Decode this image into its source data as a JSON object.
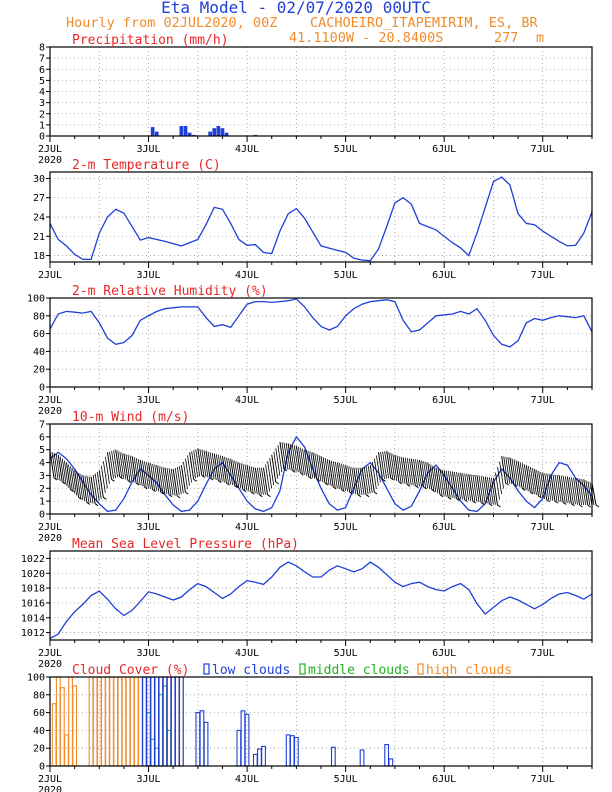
{
  "header": {
    "title": "Eta Model - 02/07/2020 00UTC",
    "subtitle_left": "Hourly from 02JUL2020, 00Z",
    "station": "CACHOEIRO_ITAPEMIRIM, ES, BR",
    "coords": "41.1100W - 20.8400S",
    "elevation": "277",
    "elevation_unit": "m"
  },
  "x_axis": {
    "day_labels": [
      "2JUL",
      "3JUL",
      "4JUL",
      "5JUL",
      "6JUL",
      "7JUL"
    ],
    "year_label": "2020",
    "range_hours": [
      0,
      132
    ]
  },
  "colors": {
    "series": "#1f3fd8",
    "title": "#e82828",
    "header": "#f08c2a",
    "grid": "#9a9a9a",
    "low": "#1f3fd8",
    "middle": "#21b221",
    "high": "#f08c2a",
    "wind_barbs": "#000000"
  },
  "chart_data": [
    {
      "type": "bar",
      "title": "Precipitation (mm/h)",
      "ylim": [
        0,
        8
      ],
      "yticks": [
        "0",
        "1",
        "2",
        "3",
        "4",
        "5",
        "6",
        "7",
        "8"
      ],
      "x": [
        25,
        26,
        32,
        33,
        34,
        35,
        39,
        40,
        41,
        42,
        43,
        50
      ],
      "values": [
        0.8,
        0.4,
        0.9,
        0.9,
        0.3,
        0.1,
        0.4,
        0.7,
        0.9,
        0.7,
        0.3,
        0.1
      ]
    },
    {
      "type": "line",
      "title": "2-m Temperature (C)",
      "ylim": [
        17,
        31
      ],
      "yticks": [
        "18",
        "21",
        "24",
        "27",
        "30"
      ],
      "x": [
        0,
        2,
        4,
        6,
        8,
        10,
        12,
        14,
        16,
        18,
        20,
        22,
        24,
        28,
        32,
        36,
        38,
        40,
        42,
        44,
        46,
        48,
        50,
        52,
        54,
        56,
        58,
        60,
        62,
        66,
        70,
        72,
        74,
        76,
        78,
        80,
        82,
        84,
        86,
        88,
        90,
        94,
        98,
        100,
        102,
        104,
        106,
        108,
        110,
        112,
        114,
        116,
        118,
        120,
        122,
        124,
        126,
        128,
        130,
        132
      ],
      "values": [
        23.0,
        20.5,
        19.5,
        18.2,
        17.4,
        17.4,
        21.5,
        24.0,
        25.2,
        24.6,
        22.5,
        20.4,
        20.8,
        20.2,
        19.5,
        20.5,
        22.8,
        25.5,
        25.2,
        23.0,
        20.5,
        19.6,
        19.7,
        18.5,
        18.3,
        21.8,
        24.5,
        25.3,
        23.8,
        19.5,
        18.8,
        18.5,
        17.6,
        17.3,
        17.2,
        19.0,
        22.5,
        26.2,
        27.0,
        26.0,
        23.0,
        22.0,
        20.0,
        19.2,
        18.0,
        21.5,
        25.5,
        29.5,
        30.2,
        29.0,
        24.5,
        23.0,
        22.8,
        21.8,
        21.0,
        20.2,
        19.5,
        19.6,
        21.5,
        24.8
      ],
      "line_color": "#1f3fd8"
    },
    {
      "type": "line",
      "title": "2-m Relative Humidity (%)",
      "ylim": [
        0,
        100
      ],
      "yticks": [
        "0",
        "20",
        "40",
        "60",
        "80",
        "100"
      ],
      "x": [
        0,
        2,
        4,
        6,
        8,
        10,
        12,
        14,
        16,
        18,
        20,
        22,
        24,
        26,
        28,
        32,
        36,
        38,
        40,
        42,
        44,
        46,
        48,
        50,
        52,
        54,
        56,
        58,
        60,
        62,
        64,
        66,
        68,
        70,
        72,
        74,
        76,
        78,
        80,
        82,
        84,
        86,
        88,
        90,
        94,
        98,
        100,
        102,
        104,
        106,
        108,
        110,
        112,
        114,
        116,
        118,
        120,
        122,
        124,
        126,
        128,
        130,
        132
      ],
      "values": [
        65,
        82,
        85,
        84,
        83,
        85,
        72,
        55,
        48,
        50,
        58,
        75,
        80,
        85,
        88,
        90,
        90,
        78,
        68,
        70,
        67,
        80,
        93,
        96,
        96,
        95,
        96,
        97,
        99,
        90,
        78,
        68,
        64,
        68,
        80,
        88,
        93,
        96,
        97,
        98,
        96,
        75,
        62,
        64,
        80,
        82,
        85,
        82,
        88,
        75,
        58,
        48,
        45,
        52,
        72,
        77,
        75,
        78,
        80,
        79,
        78,
        80,
        62
      ],
      "line_color": "#1f3fd8"
    },
    {
      "type": "line",
      "title": "10-m Wind (m/s)",
      "ylim": [
        0,
        7
      ],
      "yticks": [
        "0",
        "1",
        "2",
        "3",
        "4",
        "5",
        "6",
        "7"
      ],
      "x": [
        0,
        2,
        4,
        6,
        8,
        10,
        12,
        14,
        16,
        18,
        20,
        22,
        24,
        26,
        28,
        30,
        32,
        34,
        36,
        38,
        40,
        42,
        44,
        46,
        48,
        50,
        52,
        54,
        56,
        58,
        60,
        62,
        64,
        66,
        68,
        70,
        72,
        74,
        76,
        78,
        80,
        82,
        84,
        86,
        88,
        90,
        92,
        94,
        96,
        98,
        100,
        102,
        104,
        106,
        108,
        110,
        112,
        114,
        116,
        118,
        120,
        122,
        124,
        126,
        128,
        130,
        132
      ],
      "values": [
        4.3,
        4.8,
        4.3,
        3.5,
        2.5,
        1.5,
        0.8,
        0.2,
        0.3,
        1.2,
        2.5,
        3.5,
        3.0,
        2.4,
        1.5,
        0.7,
        0.2,
        0.3,
        1.0,
        2.3,
        3.5,
        4.0,
        3.0,
        2.0,
        1.0,
        0.4,
        0.2,
        0.5,
        1.8,
        4.8,
        6.0,
        5.2,
        3.5,
        2.0,
        0.8,
        0.3,
        0.5,
        2.0,
        3.5,
        4.0,
        3.2,
        2.0,
        0.8,
        0.3,
        0.6,
        1.8,
        3.2,
        3.8,
        3.0,
        2.0,
        1.0,
        0.3,
        0.2,
        0.8,
        2.5,
        3.5,
        2.8,
        1.8,
        1.0,
        0.5,
        1.2,
        3.0,
        4.0,
        3.8,
        2.8,
        2.2,
        1.4
      ],
      "line_color": "#1f3fd8",
      "barbs_x": [
        0,
        2,
        4,
        6,
        8,
        10,
        12,
        14,
        16,
        18,
        20,
        22,
        24,
        26,
        28,
        30,
        32,
        34,
        36,
        38,
        40,
        42,
        44,
        46,
        48,
        50,
        52,
        54,
        56,
        58,
        60,
        62,
        64,
        66,
        68,
        70,
        72,
        74,
        76,
        78,
        80,
        82,
        84,
        86,
        88,
        90,
        92,
        94,
        96,
        98,
        100,
        102,
        104,
        106,
        108,
        110,
        112,
        114,
        116,
        118,
        120,
        122,
        124,
        126,
        128,
        130,
        132
      ],
      "barbs_y": [
        4.9,
        4.6,
        4.0,
        3.4,
        3.0,
        2.9,
        3.4,
        4.8,
        5.0,
        4.7,
        4.5,
        4.2,
        4.0,
        3.8,
        3.6,
        3.5,
        3.8,
        4.8,
        5.1,
        4.9,
        4.7,
        4.5,
        4.3,
        4.0,
        3.8,
        3.6,
        3.6,
        4.6,
        5.6,
        5.5,
        5.3,
        5.0,
        4.8,
        4.5,
        4.2,
        4.0,
        3.8,
        3.6,
        3.6,
        3.8,
        4.8,
        4.9,
        4.6,
        4.4,
        4.3,
        4.2,
        4.0,
        3.6,
        3.4,
        3.3,
        3.2,
        3.1,
        3.0,
        2.9,
        2.8,
        4.5,
        4.4,
        4.1,
        3.8,
        3.5,
        3.2,
        3.1,
        3.0,
        2.9,
        2.8,
        2.7,
        2.4
      ]
    },
    {
      "type": "line",
      "title": "Mean Sea Level Pressure (hPa)",
      "ylim": [
        1011,
        1023
      ],
      "yticks": [
        "1012",
        "1014",
        "1016",
        "1018",
        "1020",
        "1022"
      ],
      "x": [
        0,
        2,
        4,
        6,
        8,
        10,
        12,
        14,
        16,
        18,
        20,
        22,
        24,
        26,
        28,
        30,
        32,
        34,
        36,
        38,
        40,
        42,
        44,
        46,
        48,
        50,
        52,
        54,
        56,
        58,
        60,
        62,
        64,
        66,
        68,
        70,
        72,
        74,
        76,
        78,
        80,
        82,
        84,
        86,
        88,
        90,
        92,
        94,
        96,
        98,
        100,
        102,
        104,
        106,
        108,
        110,
        112,
        114,
        116,
        118,
        120,
        122,
        124,
        126,
        128,
        130,
        132
      ],
      "values": [
        1011.2,
        1011.8,
        1013.5,
        1014.8,
        1015.8,
        1017.0,
        1017.6,
        1016.5,
        1015.2,
        1014.3,
        1015.0,
        1016.2,
        1017.5,
        1017.2,
        1016.8,
        1016.4,
        1016.8,
        1017.8,
        1018.6,
        1018.2,
        1017.4,
        1016.6,
        1017.2,
        1018.2,
        1019.0,
        1018.8,
        1018.5,
        1019.5,
        1020.8,
        1021.5,
        1021.0,
        1020.2,
        1019.5,
        1019.5,
        1020.4,
        1021.0,
        1020.6,
        1020.2,
        1020.6,
        1021.5,
        1020.8,
        1019.8,
        1018.8,
        1018.2,
        1018.6,
        1018.8,
        1018.2,
        1017.8,
        1017.6,
        1018.2,
        1018.6,
        1017.8,
        1015.9,
        1014.5,
        1015.4,
        1016.3,
        1016.8,
        1016.4,
        1015.8,
        1015.2,
        1015.8,
        1016.6,
        1017.2,
        1017.4,
        1017.0,
        1016.5,
        1017.2
      ],
      "line_color": "#1f3fd8"
    },
    {
      "type": "bar",
      "title": "Cloud Cover (%)",
      "legend": [
        "low clouds",
        "middle clouds",
        "high clouds"
      ],
      "ylim": [
        0,
        100
      ],
      "yticks": [
        "0",
        "20",
        "40",
        "60",
        "80",
        "100"
      ],
      "series": [
        {
          "name": "high clouds",
          "x": [
            1,
            2,
            3,
            4,
            5,
            6,
            10,
            11,
            12,
            13,
            14,
            15,
            16,
            17,
            18,
            19,
            20,
            21,
            22,
            23,
            24,
            25,
            26,
            27,
            28,
            29,
            30,
            31,
            32
          ],
          "values": [
            70,
            100,
            88,
            35,
            100,
            90,
            100,
            100,
            100,
            100,
            100,
            100,
            100,
            100,
            100,
            100,
            100,
            100,
            100,
            100,
            100,
            100,
            100,
            100,
            100,
            100,
            100,
            100,
            100
          ]
        },
        {
          "name": "middle clouds",
          "x": [
            24,
            25,
            26,
            27,
            28,
            29
          ],
          "values": [
            60,
            30,
            20,
            80,
            90,
            40
          ]
        },
        {
          "name": "low clouds",
          "x": [
            23,
            24,
            25,
            26,
            27,
            28,
            29,
            30,
            31,
            32,
            36,
            37,
            38,
            46,
            47,
            48,
            50,
            51,
            52,
            58,
            59,
            60,
            69,
            76,
            82,
            83
          ],
          "values": [
            100,
            100,
            100,
            100,
            100,
            100,
            100,
            100,
            100,
            100,
            60,
            62,
            49,
            40,
            62,
            58,
            13,
            19,
            22,
            35,
            34,
            32,
            21,
            18,
            24,
            8
          ]
        }
      ]
    }
  ]
}
